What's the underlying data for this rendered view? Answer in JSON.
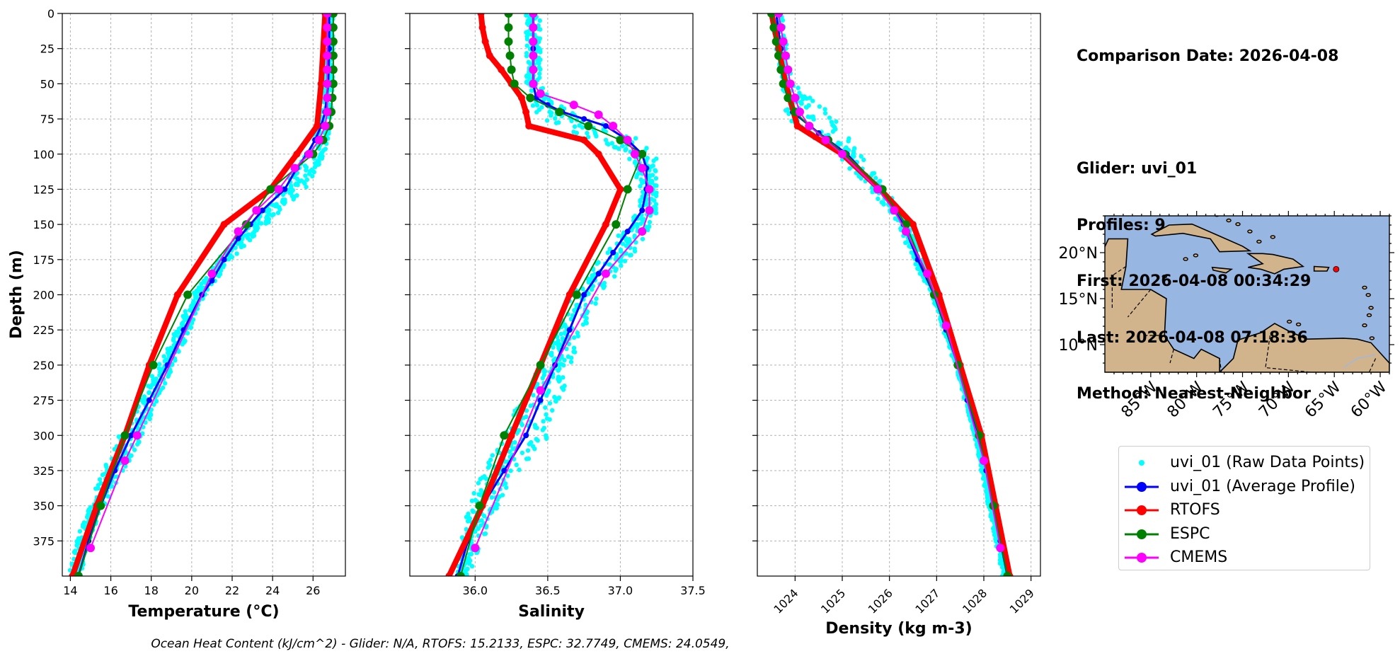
{
  "info": {
    "comparison_date": "Comparison Date: 2026-04-08",
    "glider": "Glider: uvi_01",
    "profiles": "Profiles: 9",
    "first": "First: 2026-04-08 00:34:29",
    "last": "Last: 2026-04-08 07:18:36",
    "method": "Method: Nearest-Neighbor"
  },
  "footer": "Ocean Heat Content (kJ/cm^2) - Glider: N/A,  RTOFS: 15.2133,  ESPC: 32.7749,  CMEMS: 24.0549,",
  "colors": {
    "raw": "#00ffff",
    "glider_avg": "#0000ff",
    "rtofs": "#ff0000",
    "espc": "#008000",
    "cmems": "#ff00ff",
    "ocean": "#97b6e1",
    "land": "#d2b48c"
  },
  "legend": [
    {
      "key": "raw",
      "label": "uvi_01 (Raw Data Points)",
      "style": "dots"
    },
    {
      "key": "glider_avg",
      "label": "uvi_01 (Average Profile)",
      "style": "line"
    },
    {
      "key": "rtofs",
      "label": "RTOFS",
      "style": "line"
    },
    {
      "key": "espc",
      "label": "ESPC",
      "style": "line"
    },
    {
      "key": "cmems",
      "label": "CMEMS",
      "style": "line"
    }
  ],
  "chart_data": [
    {
      "type": "line",
      "xlabel": "Temperature (°C)",
      "ylabel": "Depth (m)",
      "xlim": [
        13.6,
        27.6
      ],
      "ylim": [
        400,
        0
      ],
      "xticks": [
        14,
        16,
        18,
        20,
        22,
        24,
        26
      ],
      "yticks": [
        0,
        25,
        50,
        75,
        100,
        125,
        150,
        175,
        200,
        225,
        250,
        275,
        300,
        325,
        350,
        375
      ],
      "grid": true,
      "raw_band": {
        "depth": [
          0,
          25,
          50,
          70,
          85,
          100,
          125,
          150,
          175,
          200,
          225,
          250,
          275,
          300,
          325,
          350,
          375,
          400
        ],
        "min": [
          26.6,
          26.6,
          26.5,
          26.4,
          26.1,
          25.6,
          24.3,
          22.7,
          21.3,
          20.0,
          19.2,
          18.3,
          17.4,
          16.4,
          15.6,
          14.9,
          14.3,
          13.9
        ],
        "max": [
          27.0,
          27.0,
          27.0,
          26.9,
          26.8,
          26.6,
          25.6,
          23.6,
          21.9,
          20.6,
          19.9,
          19.1,
          18.3,
          17.6,
          16.6,
          15.6,
          14.9,
          14.5
        ]
      },
      "series": [
        {
          "name": "uvi_01 (Average Profile)",
          "key": "glider_avg",
          "width": 3,
          "marker": 6,
          "depth": [
            0,
            10,
            25,
            50,
            70,
            80,
            90,
            100,
            110,
            125,
            140,
            150,
            160,
            175,
            190,
            200,
            225,
            250,
            275,
            300,
            325,
            350,
            375,
            400
          ],
          "values": [
            26.8,
            26.8,
            26.8,
            26.75,
            26.6,
            26.4,
            26.1,
            25.7,
            25.2,
            24.6,
            23.5,
            22.9,
            22.3,
            21.6,
            21.0,
            20.5,
            19.6,
            18.8,
            17.9,
            17.0,
            16.2,
            15.5,
            14.9,
            14.4
          ]
        },
        {
          "name": "RTOFS",
          "key": "rtofs",
          "width": 8,
          "marker": 8,
          "depth": [
            0,
            50,
            80,
            100,
            125,
            150,
            200,
            250,
            300,
            350,
            400
          ],
          "values": [
            26.6,
            26.4,
            26.2,
            25.2,
            23.9,
            21.6,
            19.3,
            17.9,
            16.7,
            15.3,
            14.1
          ]
        },
        {
          "name": "ESPC",
          "key": "espc",
          "width": 2,
          "marker": 10,
          "depth": [
            0,
            10,
            20,
            30,
            40,
            50,
            60,
            70,
            80,
            90,
            100,
            125,
            150,
            200,
            250,
            300,
            350,
            400
          ],
          "values": [
            27.0,
            27.0,
            27.0,
            27.0,
            27.0,
            27.0,
            26.95,
            26.9,
            26.8,
            26.5,
            26.0,
            23.9,
            22.7,
            19.8,
            18.1,
            16.7,
            15.5,
            14.4
          ]
        },
        {
          "name": "CMEMS",
          "key": "cmems",
          "width": 2,
          "marker": 10,
          "depth": [
            0,
            10,
            20,
            30,
            40,
            50,
            60,
            70,
            80,
            90,
            100,
            110,
            125,
            140,
            155,
            185,
            300,
            318,
            380
          ],
          "values": [
            26.7,
            26.7,
            26.7,
            26.7,
            26.7,
            26.7,
            26.7,
            26.7,
            26.6,
            26.3,
            25.8,
            25.1,
            24.3,
            23.2,
            22.3,
            21.0,
            17.3,
            16.7,
            15.0
          ]
        }
      ]
    },
    {
      "type": "line",
      "xlabel": "Salinity",
      "xlim": [
        35.55,
        37.5
      ],
      "ylim": [
        400,
        0
      ],
      "xticks": [
        36.0,
        36.5,
        37.0,
        37.5
      ],
      "xticklabels": [
        "36.0",
        "36.5",
        "37.0",
        "37.5"
      ],
      "grid": true,
      "raw_band": {
        "depth": [
          0,
          25,
          50,
          62,
          70,
          80,
          90,
          100,
          110,
          125,
          140,
          155,
          175,
          200,
          225,
          250,
          275,
          300,
          325,
          350,
          375,
          400
        ],
        "min": [
          36.35,
          36.35,
          36.35,
          36.38,
          36.42,
          36.55,
          36.85,
          37.05,
          37.1,
          37.12,
          37.1,
          37.0,
          36.85,
          36.65,
          36.55,
          36.45,
          36.3,
          36.2,
          36.05,
          35.95,
          35.9,
          35.85
        ],
        "max": [
          36.45,
          36.45,
          36.45,
          36.55,
          36.75,
          36.95,
          37.15,
          37.25,
          37.25,
          37.25,
          37.25,
          37.2,
          37.05,
          36.85,
          36.75,
          36.65,
          36.6,
          36.5,
          36.3,
          36.15,
          36.05,
          35.95
        ]
      },
      "series": [
        {
          "name": "uvi_01 (Average Profile)",
          "key": "glider_avg",
          "width": 3,
          "marker": 6,
          "depth": [
            0,
            25,
            50,
            60,
            65,
            70,
            75,
            80,
            90,
            100,
            110,
            125,
            140,
            155,
            170,
            185,
            200,
            225,
            250,
            275,
            300,
            325,
            350,
            375,
            400
          ],
          "values": [
            36.4,
            36.4,
            36.4,
            36.42,
            36.5,
            36.6,
            36.75,
            36.9,
            37.05,
            37.15,
            37.18,
            37.18,
            37.15,
            37.05,
            36.95,
            36.85,
            36.75,
            36.65,
            36.55,
            36.45,
            36.35,
            36.2,
            36.05,
            35.95,
            35.88
          ]
        },
        {
          "name": "RTOFS",
          "key": "rtofs",
          "width": 8,
          "marker": 8,
          "depth": [
            0,
            10,
            20,
            30,
            40,
            50,
            60,
            70,
            80,
            90,
            100,
            125,
            150,
            200,
            250,
            300,
            350,
            400
          ],
          "values": [
            36.04,
            36.05,
            36.07,
            36.1,
            36.18,
            36.25,
            36.32,
            36.35,
            36.37,
            36.75,
            36.85,
            37.0,
            36.9,
            36.65,
            36.45,
            36.25,
            36.05,
            35.82
          ]
        },
        {
          "name": "ESPC",
          "key": "espc",
          "width": 2,
          "marker": 10,
          "depth": [
            0,
            10,
            20,
            30,
            40,
            50,
            60,
            70,
            80,
            90,
            100,
            125,
            150,
            200,
            250,
            300,
            350,
            400
          ],
          "values": [
            36.23,
            36.23,
            36.23,
            36.24,
            36.25,
            36.27,
            36.38,
            36.58,
            36.78,
            37.0,
            37.15,
            37.05,
            36.97,
            36.7,
            36.45,
            36.2,
            36.03,
            35.9
          ]
        },
        {
          "name": "CMEMS",
          "key": "cmems",
          "width": 2,
          "marker": 10,
          "depth": [
            0,
            10,
            20,
            30,
            40,
            50,
            57,
            65,
            72,
            80,
            90,
            100,
            110,
            125,
            140,
            155,
            185,
            268,
            380
          ],
          "values": [
            36.4,
            36.4,
            36.4,
            36.4,
            36.4,
            36.4,
            36.45,
            36.68,
            36.85,
            36.95,
            37.05,
            37.1,
            37.15,
            37.2,
            37.2,
            37.15,
            36.9,
            36.45,
            36.0
          ]
        }
      ]
    },
    {
      "type": "line",
      "xlabel": "Density (kg m-3)",
      "xlim": [
        1023.2,
        1029.2
      ],
      "ylim": [
        400,
        0
      ],
      "xticks": [
        1024,
        1025,
        1026,
        1027,
        1028,
        1029
      ],
      "grid": true,
      "raw_band": {
        "depth": [
          0,
          25,
          50,
          70,
          80,
          90,
          100,
          125,
          150,
          175,
          200,
          250,
          300,
          350,
          400
        ],
        "min": [
          1023.5,
          1023.6,
          1023.7,
          1023.8,
          1024.0,
          1024.5,
          1024.9,
          1025.6,
          1026.2,
          1026.5,
          1026.9,
          1027.4,
          1027.8,
          1028.1,
          1028.4
        ],
        "max": [
          1023.75,
          1023.85,
          1023.95,
          1024.8,
          1025.0,
          1025.2,
          1025.4,
          1025.95,
          1026.4,
          1026.75,
          1027.05,
          1027.5,
          1027.9,
          1028.2,
          1028.55
        ]
      },
      "series": [
        {
          "name": "uvi_01 (Average Profile)",
          "key": "glider_avg",
          "width": 3,
          "marker": 6,
          "depth": [
            0,
            25,
            50,
            70,
            85,
            100,
            125,
            150,
            175,
            200,
            225,
            250,
            275,
            300,
            325,
            350,
            375,
            400
          ],
          "values": [
            1023.6,
            1023.7,
            1023.8,
            1023.95,
            1024.5,
            1025.1,
            1025.8,
            1026.3,
            1026.6,
            1026.95,
            1027.2,
            1027.45,
            1027.65,
            1027.9,
            1028.05,
            1028.2,
            1028.35,
            1028.5
          ]
        },
        {
          "name": "RTOFS",
          "key": "rtofs",
          "width": 8,
          "marker": 8,
          "depth": [
            0,
            25,
            50,
            80,
            100,
            125,
            150,
            200,
            250,
            300,
            350,
            400
          ],
          "values": [
            1023.5,
            1023.65,
            1023.8,
            1024.05,
            1025.0,
            1025.8,
            1026.5,
            1027.05,
            1027.5,
            1027.95,
            1028.25,
            1028.55
          ]
        },
        {
          "name": "ESPC",
          "key": "espc",
          "width": 2,
          "marker": 10,
          "depth": [
            0,
            10,
            20,
            30,
            40,
            50,
            60,
            70,
            80,
            90,
            100,
            125,
            150,
            200,
            250,
            300,
            350,
            400
          ],
          "values": [
            1023.5,
            1023.55,
            1023.6,
            1023.65,
            1023.7,
            1023.75,
            1023.85,
            1024.0,
            1024.3,
            1024.7,
            1025.05,
            1025.85,
            1026.35,
            1026.95,
            1027.45,
            1027.9,
            1028.2,
            1028.5
          ]
        },
        {
          "name": "CMEMS",
          "key": "cmems",
          "width": 2,
          "marker": 10,
          "depth": [
            0,
            10,
            20,
            30,
            40,
            50,
            60,
            70,
            80,
            90,
            100,
            125,
            140,
            155,
            185,
            222,
            318,
            380
          ],
          "values": [
            1023.65,
            1023.7,
            1023.75,
            1023.8,
            1023.85,
            1023.9,
            1024.0,
            1024.1,
            1024.3,
            1024.65,
            1025.0,
            1025.75,
            1026.1,
            1026.35,
            1026.8,
            1027.2,
            1028.0,
            1028.35
          ]
        }
      ]
    }
  ],
  "map": {
    "lat_ticks": [
      "20°N",
      "15°N",
      "10°N"
    ],
    "lat_values": [
      20,
      15,
      10
    ],
    "lon_ticks": [
      "85°W",
      "80°W",
      "75°W",
      "70°W",
      "65°W",
      "60°W"
    ],
    "lon_values": [
      -85,
      -80,
      -75,
      -70,
      -65,
      -60
    ],
    "lon_range": [
      -90,
      -59
    ],
    "lat_range": [
      7,
      24
    ],
    "glider_position": [
      -64.8,
      18.2
    ]
  }
}
